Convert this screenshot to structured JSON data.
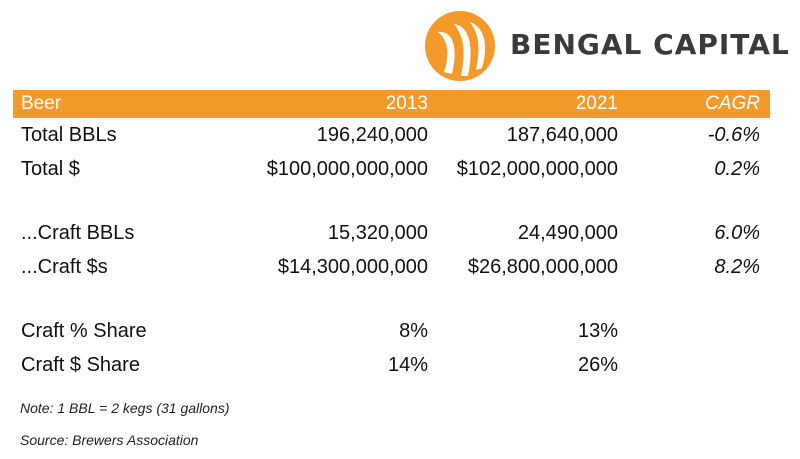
{
  "brand": {
    "name": "BENGAL CAPITAL",
    "accent_color": "#f39a2b",
    "logo_icon": "bengal-claw-logo-icon"
  },
  "table": {
    "header": {
      "label": "Beer",
      "col_2013": "2013",
      "col_2021": "2021",
      "col_cagr": "CAGR"
    },
    "rows": [
      {
        "label": "Total BBLs",
        "v2013": "196,240,000",
        "v2021": "187,640,000",
        "cagr": "-0.6%"
      },
      {
        "label": "Total $",
        "v2013": "$100,000,000,000",
        "v2021": "$102,000,000,000",
        "cagr": "0.2%"
      },
      {
        "label": "...Craft BBLs",
        "v2013": "15,320,000",
        "v2021": "24,490,000",
        "cagr": "6.0%"
      },
      {
        "label": "...Craft $s",
        "v2013": "$14,300,000,000",
        "v2021": "$26,800,000,000",
        "cagr": "8.2%"
      },
      {
        "label": "Craft % Share",
        "v2013": "8%",
        "v2021": "13%",
        "cagr": ""
      },
      {
        "label": "Craft $ Share",
        "v2013": "14%",
        "v2021": "26%",
        "cagr": ""
      }
    ]
  },
  "notes": {
    "note": "Note: 1 BBL = 2 kegs (31 gallons)",
    "source": "Source: Brewers Association"
  }
}
